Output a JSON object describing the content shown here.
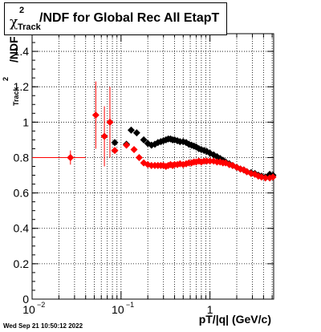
{
  "title": {
    "chi": "χ",
    "sup": "2",
    "sub": "Track",
    "rest": "/NDF for Global Rec All EtapT"
  },
  "yaxis": {
    "chi": "χ",
    "sup": "2",
    "sub": "Track",
    "rest": "/NDF"
  },
  "footer": {
    "timestamp": "Wed Sep 21 10:50:12 2022"
  },
  "colors": {
    "series_black": "#000000",
    "series_red": "#ff0000"
  },
  "chart_data": {
    "type": "scatter",
    "xlabel": "pT/|q| (GeV/c)",
    "ylabel": "χ2Track/NDF",
    "xscale": "log",
    "xlim": [
      0.01,
      5.2
    ],
    "ylim": [
      0,
      1.5
    ],
    "grid": true,
    "legend": "none",
    "x_ticks": [
      {
        "value": 0.01,
        "base": "10",
        "exp": "−2"
      },
      {
        "value": 0.1,
        "base": "10",
        "exp": "−1"
      },
      {
        "value": 1,
        "base": "1",
        "exp": ""
      }
    ],
    "y_ticks": [
      "0",
      "0.2",
      "0.4",
      "0.6",
      "0.8",
      "1",
      "1.2",
      "1.4"
    ],
    "y_tick_values": [
      0,
      0.2,
      0.4,
      0.6,
      0.8,
      1.0,
      1.2,
      1.4
    ],
    "series": [
      {
        "color": "#000000",
        "points": [
          {
            "x": 0.085,
            "y": 0.885
          },
          {
            "x": 0.115,
            "y": 0.875
          },
          {
            "x": 0.13,
            "y": 0.955
          },
          {
            "x": 0.15,
            "y": 0.94
          },
          {
            "x": 0.18,
            "y": 0.9
          },
          {
            "x": 0.2,
            "y": 0.88
          },
          {
            "x": 0.22,
            "y": 0.87
          },
          {
            "x": 0.24,
            "y": 0.875
          },
          {
            "x": 0.26,
            "y": 0.885
          },
          {
            "x": 0.28,
            "y": 0.89
          },
          {
            "x": 0.3,
            "y": 0.895
          },
          {
            "x": 0.32,
            "y": 0.9
          },
          {
            "x": 0.34,
            "y": 0.905
          },
          {
            "x": 0.36,
            "y": 0.905
          },
          {
            "x": 0.38,
            "y": 0.9
          },
          {
            "x": 0.4,
            "y": 0.9
          },
          {
            "x": 0.43,
            "y": 0.895
          },
          {
            "x": 0.46,
            "y": 0.89
          },
          {
            "x": 0.5,
            "y": 0.89
          },
          {
            "x": 0.54,
            "y": 0.885
          },
          {
            "x": 0.58,
            "y": 0.875
          },
          {
            "x": 0.62,
            "y": 0.87
          },
          {
            "x": 0.66,
            "y": 0.865
          },
          {
            "x": 0.7,
            "y": 0.86
          },
          {
            "x": 0.75,
            "y": 0.85
          },
          {
            "x": 0.8,
            "y": 0.845
          },
          {
            "x": 0.86,
            "y": 0.84
          },
          {
            "x": 0.92,
            "y": 0.835
          },
          {
            "x": 1.0,
            "y": 0.825
          },
          {
            "x": 1.1,
            "y": 0.815
          },
          {
            "x": 1.2,
            "y": 0.805
          },
          {
            "x": 1.3,
            "y": 0.795
          },
          {
            "x": 1.4,
            "y": 0.785
          },
          {
            "x": 1.5,
            "y": 0.775
          },
          {
            "x": 1.65,
            "y": 0.765
          },
          {
            "x": 1.8,
            "y": 0.755
          },
          {
            "x": 2.0,
            "y": 0.745
          },
          {
            "x": 2.2,
            "y": 0.735
          },
          {
            "x": 2.4,
            "y": 0.73
          },
          {
            "x": 2.6,
            "y": 0.72
          },
          {
            "x": 2.9,
            "y": 0.715
          },
          {
            "x": 3.2,
            "y": 0.71
          },
          {
            "x": 3.5,
            "y": 0.7
          },
          {
            "x": 3.8,
            "y": 0.695
          },
          {
            "x": 4.2,
            "y": 0.69
          },
          {
            "x": 4.7,
            "y": 0.705
          },
          {
            "x": 5.1,
            "y": 0.7
          }
        ]
      },
      {
        "color": "#ff0000",
        "points": [
          {
            "x": 0.027,
            "y": 0.8,
            "xerr": [
              0.017,
              0.013
            ],
            "yerr": 0.04
          },
          {
            "x": 0.052,
            "y": 1.04,
            "yerr": 0.19
          },
          {
            "x": 0.065,
            "y": 0.92,
            "yerr": 0.17
          },
          {
            "x": 0.075,
            "y": 1.0,
            "yerr": 0.2
          },
          {
            "x": 0.085,
            "y": 0.84
          },
          {
            "x": 0.115,
            "y": 0.87
          },
          {
            "x": 0.14,
            "y": 0.845
          },
          {
            "x": 0.16,
            "y": 0.8
          },
          {
            "x": 0.18,
            "y": 0.77
          },
          {
            "x": 0.2,
            "y": 0.76
          },
          {
            "x": 0.22,
            "y": 0.755
          },
          {
            "x": 0.24,
            "y": 0.755
          },
          {
            "x": 0.26,
            "y": 0.755
          },
          {
            "x": 0.28,
            "y": 0.755
          },
          {
            "x": 0.3,
            "y": 0.755
          },
          {
            "x": 0.32,
            "y": 0.75
          },
          {
            "x": 0.34,
            "y": 0.755
          },
          {
            "x": 0.36,
            "y": 0.76
          },
          {
            "x": 0.38,
            "y": 0.755
          },
          {
            "x": 0.4,
            "y": 0.76
          },
          {
            "x": 0.43,
            "y": 0.76
          },
          {
            "x": 0.46,
            "y": 0.765
          },
          {
            "x": 0.5,
            "y": 0.76
          },
          {
            "x": 0.54,
            "y": 0.765
          },
          {
            "x": 0.58,
            "y": 0.77
          },
          {
            "x": 0.62,
            "y": 0.77
          },
          {
            "x": 0.66,
            "y": 0.775
          },
          {
            "x": 0.7,
            "y": 0.775
          },
          {
            "x": 0.75,
            "y": 0.78
          },
          {
            "x": 0.8,
            "y": 0.775
          },
          {
            "x": 0.86,
            "y": 0.78
          },
          {
            "x": 0.92,
            "y": 0.78
          },
          {
            "x": 1.0,
            "y": 0.78
          },
          {
            "x": 1.1,
            "y": 0.78
          },
          {
            "x": 1.2,
            "y": 0.775
          },
          {
            "x": 1.3,
            "y": 0.775
          },
          {
            "x": 1.4,
            "y": 0.77
          },
          {
            "x": 1.5,
            "y": 0.77
          },
          {
            "x": 1.65,
            "y": 0.76
          },
          {
            "x": 1.8,
            "y": 0.755
          },
          {
            "x": 2.0,
            "y": 0.745
          },
          {
            "x": 2.2,
            "y": 0.735
          },
          {
            "x": 2.4,
            "y": 0.73
          },
          {
            "x": 2.6,
            "y": 0.72
          },
          {
            "x": 2.9,
            "y": 0.71
          },
          {
            "x": 3.2,
            "y": 0.705
          },
          {
            "x": 3.5,
            "y": 0.695
          },
          {
            "x": 3.8,
            "y": 0.69
          },
          {
            "x": 4.2,
            "y": 0.685
          },
          {
            "x": 4.7,
            "y": 0.685
          },
          {
            "x": 5.1,
            "y": 0.69
          }
        ]
      }
    ]
  }
}
